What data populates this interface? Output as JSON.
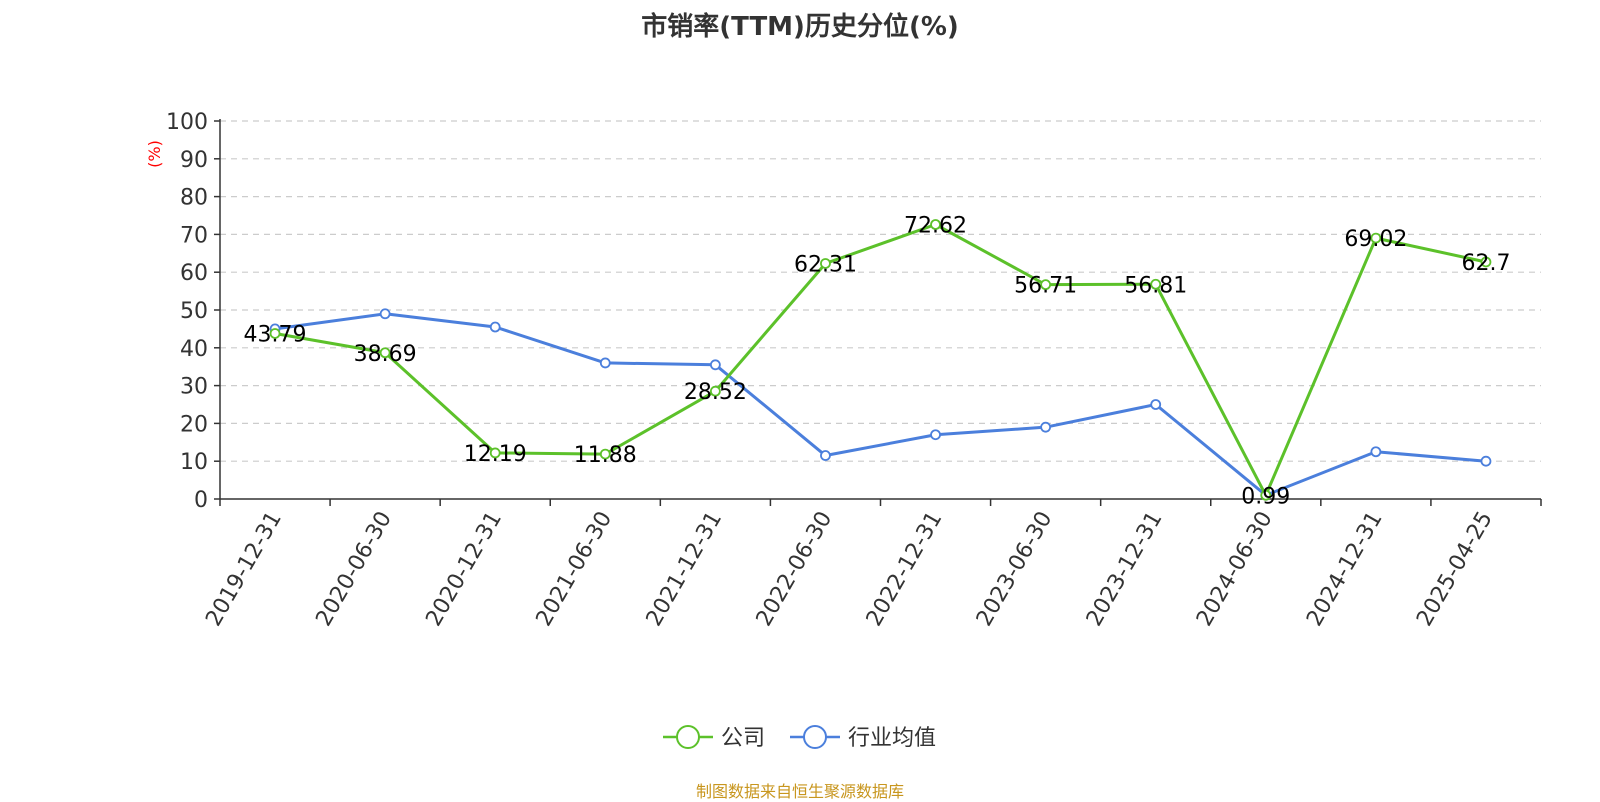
{
  "chart_data": {
    "type": "line",
    "title": "市销率(TTM)历史分位(%)",
    "ylabel": "(%)",
    "xlabel": "",
    "ylim": [
      0,
      100
    ],
    "yticks": [
      0,
      10,
      20,
      30,
      40,
      50,
      60,
      70,
      80,
      90,
      100
    ],
    "grid": true,
    "legend_position": "bottom-center",
    "categories": [
      "2019-12-31",
      "2020-06-30",
      "2020-12-31",
      "2021-06-30",
      "2021-12-31",
      "2022-06-30",
      "2022-12-31",
      "2023-06-30",
      "2023-12-31",
      "2024-06-30",
      "2024-12-31",
      "2025-04-25"
    ],
    "series": [
      {
        "name": "公司",
        "color": "#5cc12a",
        "values": [
          43.79,
          38.69,
          12.19,
          11.88,
          28.52,
          62.31,
          72.62,
          56.71,
          56.81,
          0.99,
          69.02,
          62.7
        ],
        "labels": [
          "43.79",
          "38.69",
          "12.19",
          "11.88",
          "28.52",
          "62.31",
          "72.62",
          "56.71",
          "56.81",
          "0.99",
          "69.02",
          "62.7"
        ]
      },
      {
        "name": "行业均值",
        "color": "#4b7fdc",
        "values": [
          45,
          49,
          45.5,
          36,
          35.5,
          11.5,
          17,
          19,
          25,
          1,
          12.5,
          10
        ]
      }
    ]
  },
  "source": "制图数据来自恒生聚源数据库",
  "colors": {
    "axis": "#333333",
    "grid": "#cccccc",
    "ylabel": "#ff0000",
    "source": "#c8961e"
  }
}
